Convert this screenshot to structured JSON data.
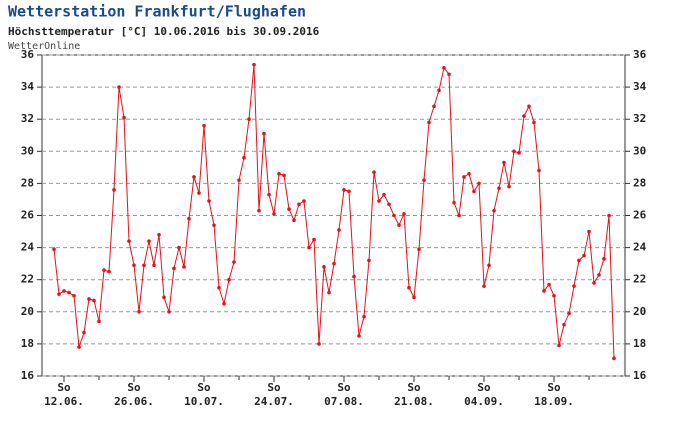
{
  "chart_data": {
    "type": "line",
    "title": "Wetterstation Frankfurt/Flughafen",
    "subtitle": "Höchsttemperatur [°C] 10.06.2016 bis 30.09.2016",
    "source": "WetterOnline",
    "x_tick_weekday": "So",
    "categories": [
      null,
      null,
      "12.06.",
      null,
      null,
      null,
      null,
      null,
      null,
      null,
      null,
      null,
      null,
      null,
      null,
      null,
      "26.06.",
      null,
      null,
      null,
      null,
      null,
      null,
      null,
      null,
      null,
      null,
      null,
      null,
      null,
      "10.07.",
      null,
      null,
      null,
      null,
      null,
      null,
      null,
      null,
      null,
      null,
      null,
      null,
      null,
      "24.07.",
      null,
      null,
      null,
      null,
      null,
      null,
      null,
      null,
      null,
      null,
      null,
      null,
      null,
      "07.08.",
      null,
      null,
      null,
      null,
      null,
      null,
      null,
      null,
      null,
      null,
      null,
      null,
      null,
      "21.08.",
      null,
      null,
      null,
      null,
      null,
      null,
      null,
      null,
      null,
      null,
      null,
      null,
      null,
      "04.09.",
      null,
      null,
      null,
      null,
      null,
      null,
      null,
      null,
      null,
      null,
      null,
      null,
      null,
      "18.09.",
      null,
      null,
      null,
      null,
      null,
      null,
      null,
      null,
      null,
      null,
      null,
      null
    ],
    "values": [
      23.9,
      21.1,
      21.3,
      21.2,
      21.0,
      17.8,
      18.7,
      20.8,
      20.7,
      19.4,
      22.6,
      22.5,
      27.6,
      34.0,
      32.1,
      24.4,
      22.9,
      20.0,
      22.9,
      24.4,
      22.9,
      24.8,
      20.9,
      20.0,
      22.7,
      24.0,
      22.8,
      25.8,
      28.4,
      27.4,
      31.6,
      26.9,
      25.4,
      21.5,
      20.5,
      22.0,
      23.1,
      28.2,
      29.6,
      32.0,
      35.4,
      26.3,
      31.1,
      27.3,
      26.1,
      28.6,
      28.5,
      26.4,
      25.7,
      26.7,
      26.9,
      24.0,
      24.5,
      18.0,
      22.8,
      21.2,
      23.0,
      25.1,
      27.6,
      27.5,
      22.2,
      18.5,
      19.7,
      23.2,
      28.7,
      26.9,
      27.3,
      26.7,
      26.0,
      25.4,
      26.1,
      21.5,
      20.9,
      23.9,
      28.2,
      31.8,
      32.8,
      33.8,
      35.2,
      34.8,
      26.8,
      26.0,
      28.4,
      28.6,
      27.5,
      28.0,
      21.6,
      22.9,
      26.3,
      27.7,
      29.3,
      27.8,
      30.0,
      29.9,
      32.2,
      32.8,
      31.8,
      28.8,
      21.3,
      21.7,
      21.0,
      17.9,
      19.2,
      19.9,
      21.6,
      23.2,
      23.5,
      25.0,
      21.8,
      22.3,
      23.3,
      26.0,
      17.1
    ],
    "color": "#e8101a",
    "ylim": [
      16,
      36
    ],
    "yticks": [
      16,
      18,
      20,
      22,
      24,
      26,
      28,
      30,
      32,
      34,
      36
    ],
    "grid": true
  }
}
